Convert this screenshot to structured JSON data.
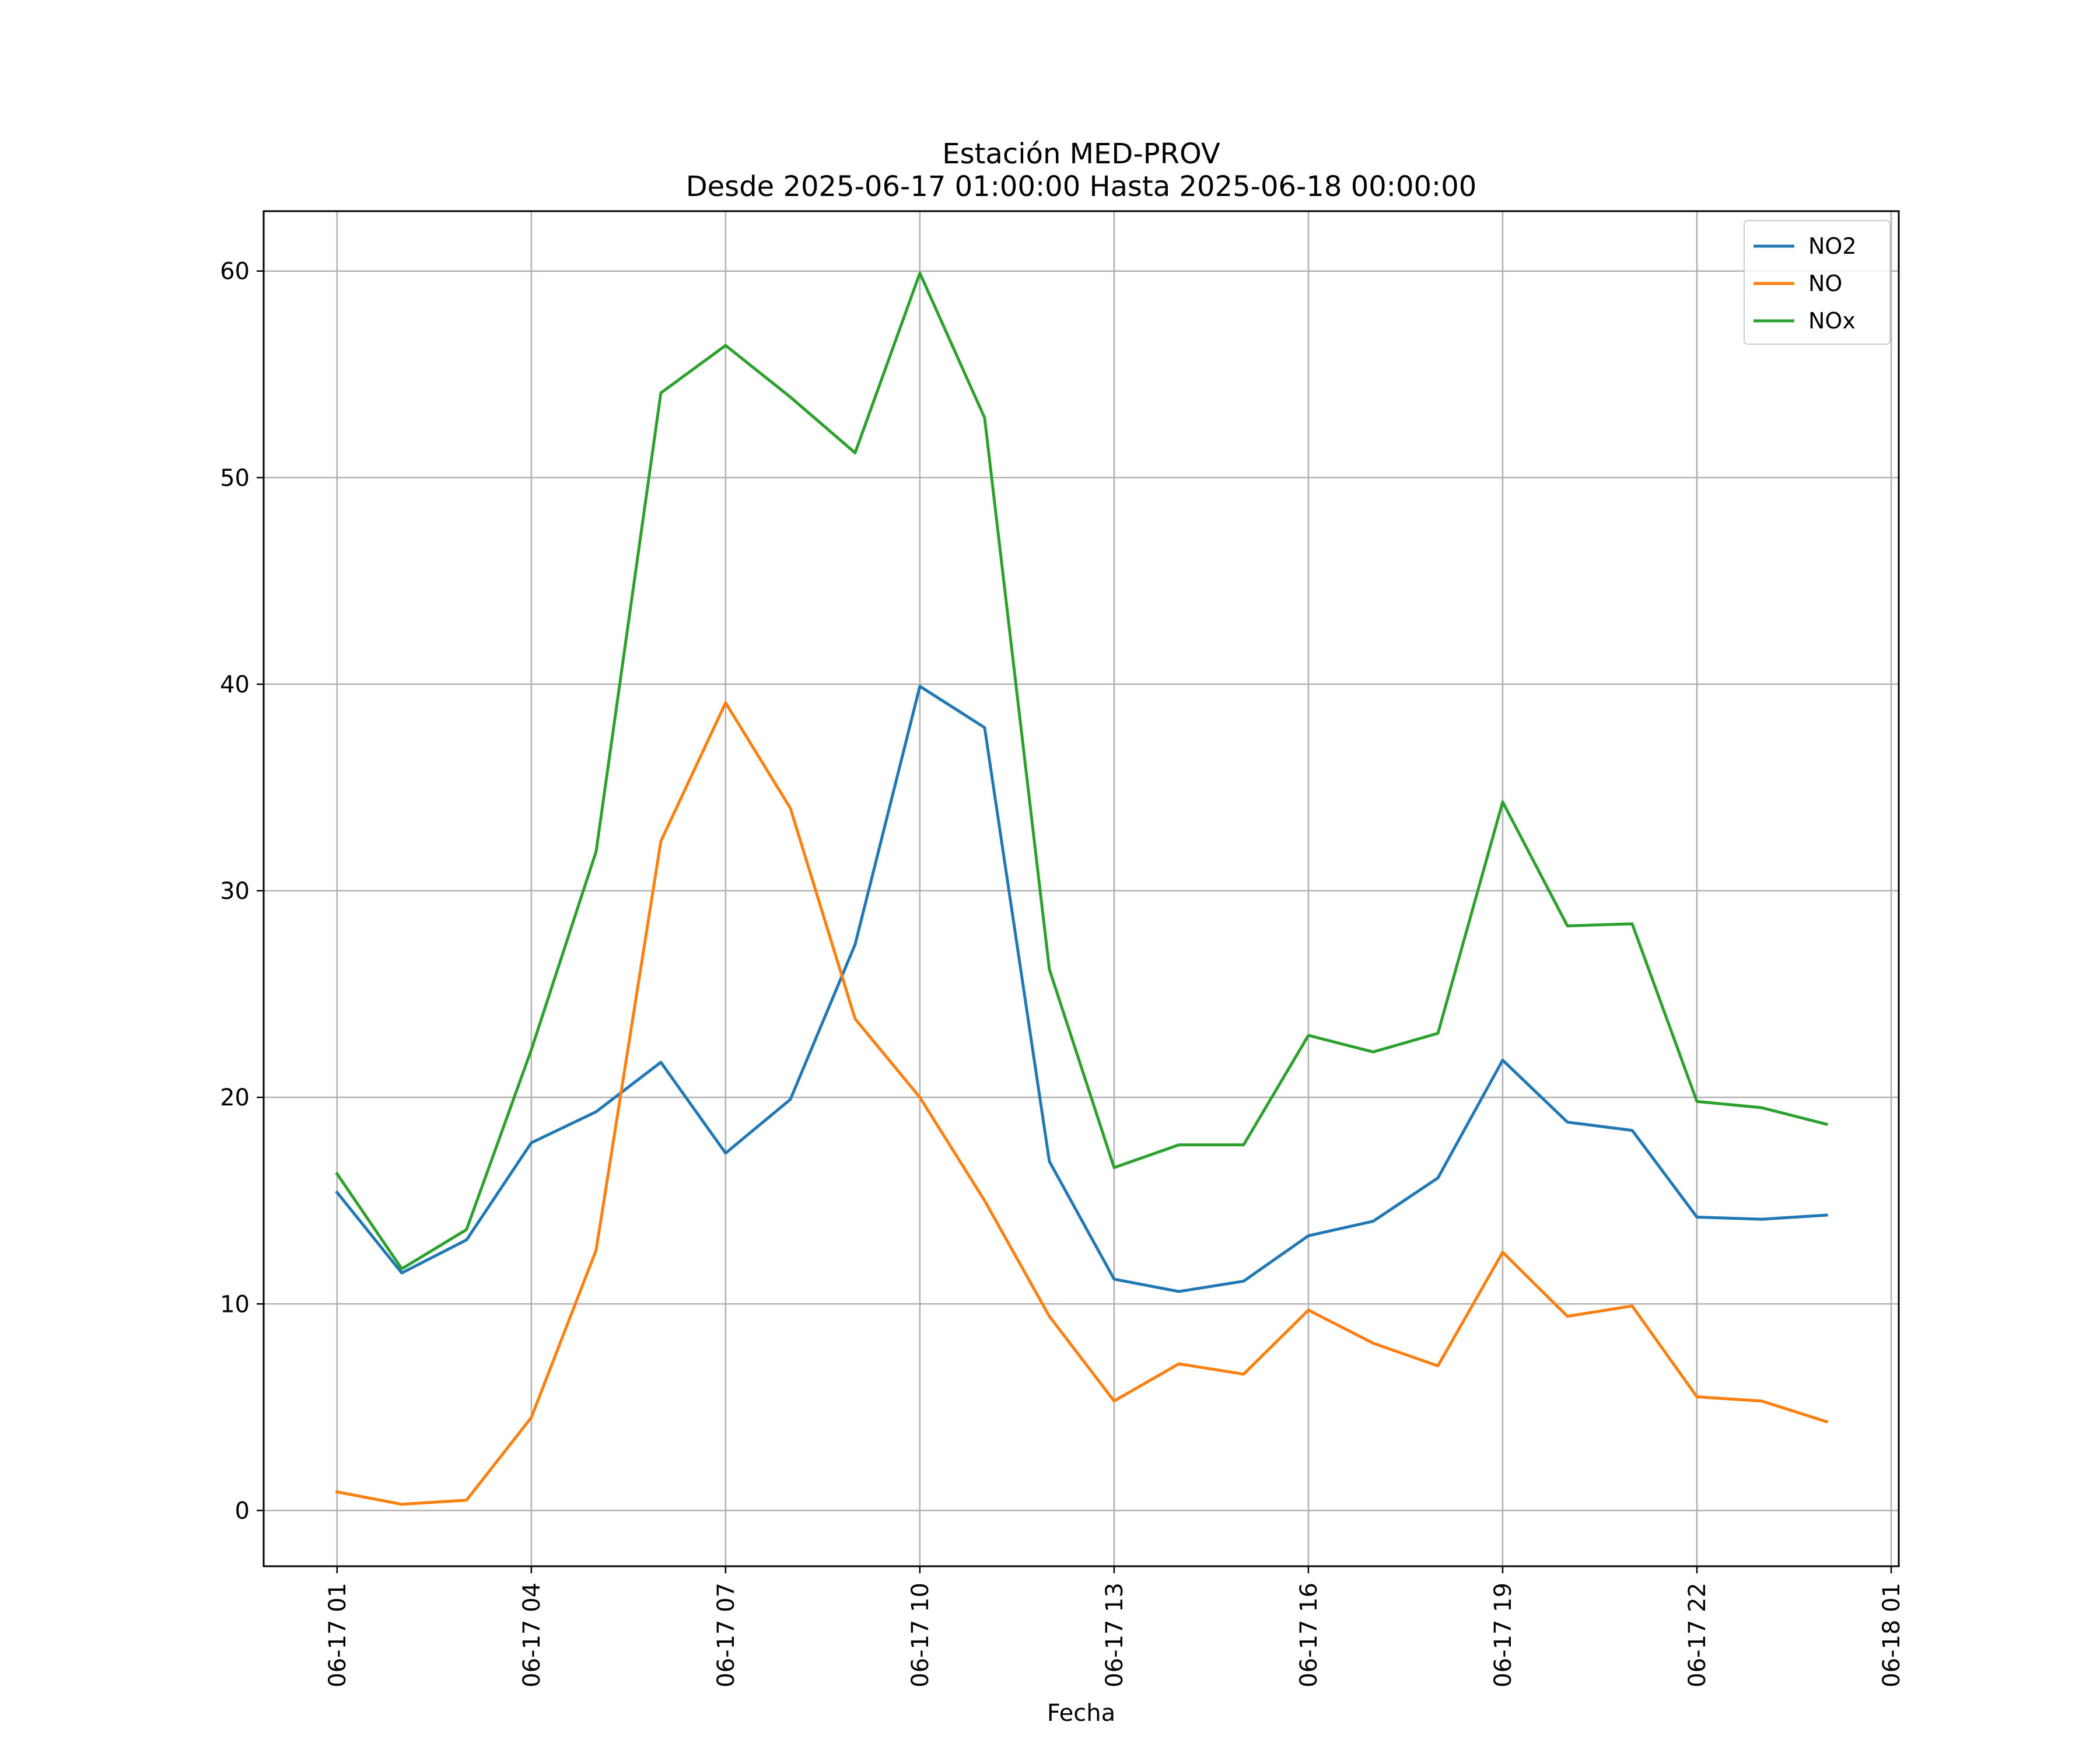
{
  "chart_data": {
    "type": "line",
    "title": "Estación MED-PROV",
    "subtitle": "Desde 2025-06-17 01:00:00 Hasta 2025-06-18 00:00:00",
    "xlabel": "Fecha",
    "ylabel": "",
    "x": [
      "2025-06-17 01:00",
      "2025-06-17 02:00",
      "2025-06-17 03:00",
      "2025-06-17 04:00",
      "2025-06-17 05:00",
      "2025-06-17 06:00",
      "2025-06-17 07:00",
      "2025-06-17 08:00",
      "2025-06-17 09:00",
      "2025-06-17 10:00",
      "2025-06-17 11:00",
      "2025-06-17 12:00",
      "2025-06-17 13:00",
      "2025-06-17 14:00",
      "2025-06-17 15:00",
      "2025-06-17 16:00",
      "2025-06-17 17:00",
      "2025-06-17 18:00",
      "2025-06-17 19:00",
      "2025-06-17 20:00",
      "2025-06-17 21:00",
      "2025-06-17 22:00",
      "2025-06-17 23:00",
      "2025-06-18 00:00"
    ],
    "xlim": [
      "2025-06-16 23:52",
      "2025-06-18 01:07"
    ],
    "xticks": [
      "06-17 01",
      "06-17 04",
      "06-17 07",
      "06-17 10",
      "06-17 13",
      "06-17 16",
      "06-17 19",
      "06-17 22",
      "06-18 01"
    ],
    "ylim": [
      -2.7,
      62.9
    ],
    "yticks": [
      "0",
      "10",
      "20",
      "30",
      "40",
      "50",
      "60"
    ],
    "grid": true,
    "legend_position": "top-right",
    "series": [
      {
        "name": "NO2",
        "color": "#1f77b4",
        "values": [
          15.4,
          11.5,
          13.1,
          17.8,
          19.3,
          21.7,
          17.3,
          19.9,
          27.4,
          39.9,
          37.9,
          16.9,
          11.2,
          10.6,
          11.1,
          13.3,
          14.0,
          16.1,
          21.8,
          18.8,
          18.4,
          14.2,
          14.1,
          14.3
        ]
      },
      {
        "name": "NO",
        "color": "#ff7f0e",
        "values": [
          0.9,
          0.3,
          0.5,
          4.5,
          12.6,
          32.4,
          39.1,
          34.0,
          23.8,
          20.0,
          15.0,
          9.4,
          5.3,
          7.1,
          6.6,
          9.7,
          8.1,
          7.0,
          12.5,
          9.4,
          9.9,
          5.5,
          5.3,
          4.3
        ]
      },
      {
        "name": "NOx",
        "color": "#2ca02c",
        "values": [
          16.3,
          11.7,
          13.6,
          22.3,
          31.9,
          54.1,
          56.4,
          53.9,
          51.2,
          59.9,
          52.9,
          26.2,
          16.6,
          17.7,
          17.7,
          23.0,
          22.2,
          23.1,
          34.3,
          28.3,
          28.4,
          19.8,
          19.5,
          18.7
        ]
      }
    ]
  }
}
